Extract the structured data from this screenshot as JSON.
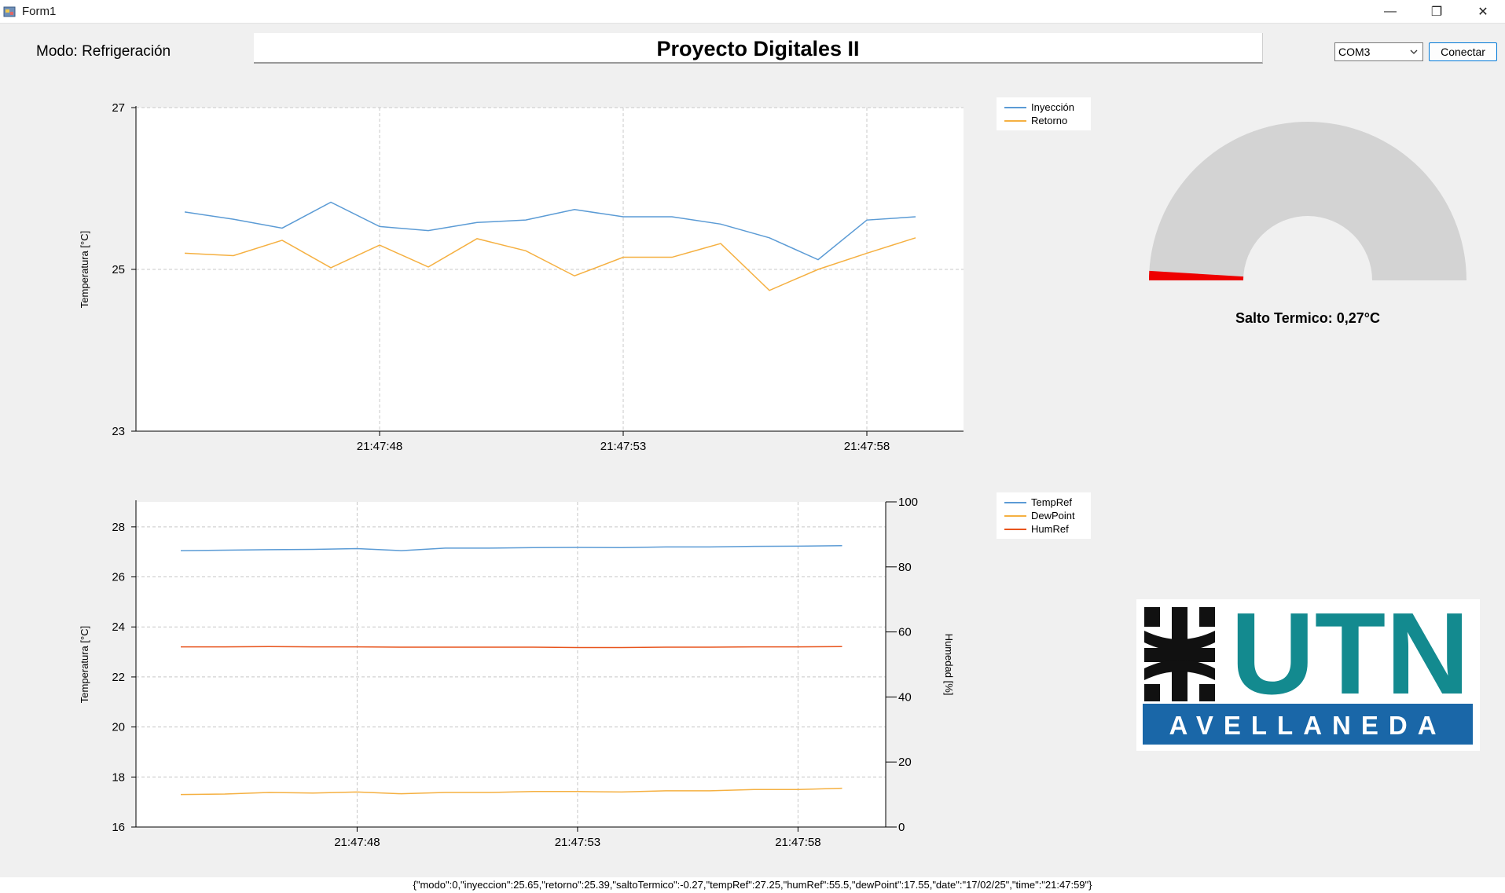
{
  "window": {
    "title": "Form1",
    "minimize_glyph": "—",
    "restore_glyph": "❐",
    "close_glyph": "✕"
  },
  "mode_label": "Modo: Refrigeración",
  "header_title": "Proyecto Digitales II",
  "serial": {
    "port": "COM3",
    "connect_label": "Conectar"
  },
  "gauge": {
    "label": "Salto Termico: 0,27°C",
    "fill_color": "#ee0000",
    "track_color": "#d3d3d3"
  },
  "logo": {
    "text_top": "UTN",
    "text_bottom": "AVELLANEDA",
    "teal": "#138a8f",
    "blue": "#1a67a8"
  },
  "status_json": "{\"modo\":0,\"inyeccion\":25.65,\"retorno\":25.39,\"saltoTermico\":-0.27,\"tempRef\":27.25,\"humRef\":55.5,\"dewPoint\":17.55,\"date\":\"17/02/25\",\"time\":\"21:47:59\"}",
  "chart_data": [
    {
      "type": "line",
      "ylabel": "Temperatura [°C]",
      "ylim": [
        23,
        27
      ],
      "yticks": [
        23,
        25,
        27
      ],
      "x_tick_labels": [
        "21:47:48",
        "21:47:53",
        "21:47:58"
      ],
      "x_tick_index": [
        4,
        9,
        14
      ],
      "grid": true,
      "legend_position": "right",
      "series": [
        {
          "name": "Inyección",
          "color": "#5b9bd5",
          "values": [
            25.71,
            25.62,
            25.51,
            25.83,
            25.53,
            25.48,
            25.58,
            25.61,
            25.74,
            25.65,
            25.65,
            25.56,
            25.39,
            25.12,
            25.61,
            25.65
          ]
        },
        {
          "name": "Retorno",
          "color": "#f5b041",
          "values": [
            25.2,
            25.17,
            25.36,
            25.02,
            25.3,
            25.03,
            25.38,
            25.23,
            24.92,
            25.15,
            25.15,
            25.32,
            24.74,
            25.0,
            25.2,
            25.39
          ]
        }
      ]
    },
    {
      "type": "line",
      "ylabel": "Temperatura [°C]",
      "y2label": "Humedad [%]",
      "ylim": [
        16,
        29
      ],
      "yticks": [
        16,
        18,
        20,
        22,
        24,
        26,
        28
      ],
      "y2lim": [
        0,
        100
      ],
      "y2ticks": [
        0,
        20,
        40,
        60,
        80,
        100
      ],
      "x_tick_labels": [
        "21:47:48",
        "21:47:53",
        "21:47:58"
      ],
      "x_tick_index": [
        4,
        9,
        14
      ],
      "grid": true,
      "legend_position": "right",
      "series": [
        {
          "name": "TempRef",
          "color": "#5b9bd5",
          "axis": "left",
          "values": [
            27.05,
            27.07,
            27.09,
            27.1,
            27.13,
            27.05,
            27.15,
            27.15,
            27.17,
            27.18,
            27.17,
            27.2,
            27.2,
            27.22,
            27.23,
            27.25
          ]
        },
        {
          "name": "DewPoint",
          "color": "#f5b041",
          "axis": "left",
          "values": [
            17.3,
            17.32,
            17.38,
            17.36,
            17.4,
            17.33,
            17.38,
            17.38,
            17.42,
            17.42,
            17.4,
            17.45,
            17.45,
            17.5,
            17.5,
            17.55
          ]
        },
        {
          "name": "HumRef",
          "color": "#e8541c",
          "axis": "right",
          "values": [
            55.4,
            55.4,
            55.5,
            55.4,
            55.4,
            55.3,
            55.3,
            55.3,
            55.3,
            55.2,
            55.2,
            55.3,
            55.3,
            55.4,
            55.4,
            55.5
          ]
        }
      ]
    }
  ]
}
